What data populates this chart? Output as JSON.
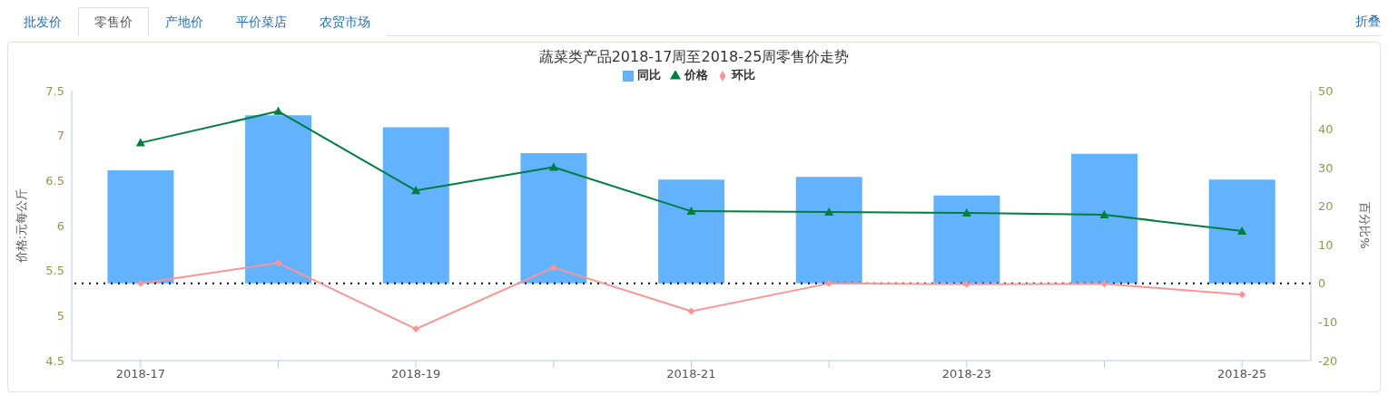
{
  "chart_data": {
    "type": "bar",
    "title": "蔬菜类产品2018-17周至2018-25周零售价走势",
    "annotations": [
      "批发价",
      "零售价",
      "产地价",
      "平价菜店",
      "农贸市场",
      "折叠"
    ],
    "categories": [
      "2018-17",
      null,
      "2018-19",
      null,
      "2018-21",
      null,
      "2018-23",
      null,
      "2018-25"
    ],
    "series": [
      {
        "name": "同比",
        "axis": "y2",
        "color": "#63b2fd",
        "values": [
          29.3,
          43.6,
          40.5,
          33.8,
          26.9,
          27.6,
          22.8,
          33.6,
          26.9
        ]
      },
      {
        "name": "价格",
        "type": "line",
        "color": "#007e3e",
        "marker": "triangle",
        "values": [
          6.92,
          7.27,
          6.39,
          6.65,
          6.16,
          6.15,
          6.14,
          6.12,
          5.94
        ]
      },
      {
        "name": "环比",
        "type": "line",
        "axis": "y2",
        "color": "#fb9595",
        "marker": "diamond",
        "values": [
          0,
          5.3,
          -11.8,
          4.1,
          -7.2,
          0,
          -0.2,
          -0.1,
          -2.9
        ]
      }
    ],
    "ylabel": "价格:元每公斤",
    "y2label": "百分比%",
    "ylim": [
      4.5,
      7.5
    ],
    "yticks": [
      4.5,
      5,
      5.5,
      6,
      6.5,
      7,
      7.5
    ],
    "y2lim": [
      -20,
      50
    ],
    "y2ticks": [
      -20,
      -10,
      0,
      10,
      20,
      30,
      40,
      50
    ],
    "ref_lines": [
      {
        "axis": "y2",
        "value": 0,
        "color": "#000000",
        "line_style": "dotted"
      }
    ],
    "legend": "top"
  }
}
